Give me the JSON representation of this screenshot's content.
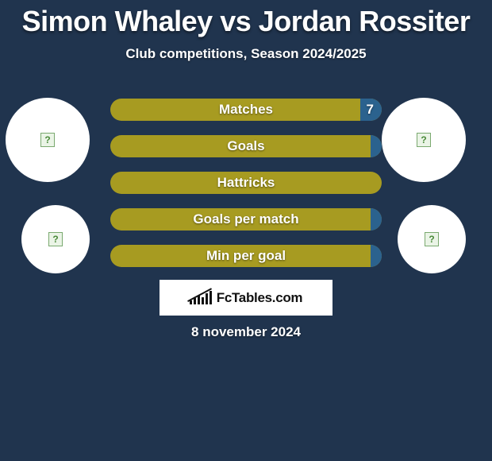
{
  "background_color": "#20344e",
  "title": "Simon Whaley vs Jordan Rossiter",
  "subtitle": "Club competitions, Season 2024/2025",
  "date": "8 november 2024",
  "logo_text": "FcTables.com",
  "placeholder_glyph": "?",
  "bar_colors": {
    "left_fill": "#a79b21",
    "right_fill": "#2b628e"
  },
  "bars": [
    {
      "label": "Matches",
      "left_value": "",
      "right_value": "7",
      "right_pct": 8
    },
    {
      "label": "Goals",
      "left_value": "",
      "right_value": "",
      "right_pct": 4
    },
    {
      "label": "Hattricks",
      "left_value": "",
      "right_value": "",
      "right_pct": 0
    },
    {
      "label": "Goals per match",
      "left_value": "",
      "right_value": "",
      "right_pct": 4
    },
    {
      "label": "Min per goal",
      "left_value": "",
      "right_value": "",
      "right_pct": 4
    }
  ],
  "circles": [
    {
      "pos": "tl"
    },
    {
      "pos": "tr"
    },
    {
      "pos": "bl"
    },
    {
      "pos": "br"
    }
  ],
  "logo_bar_heights": [
    5,
    8,
    11,
    9,
    14,
    17
  ]
}
